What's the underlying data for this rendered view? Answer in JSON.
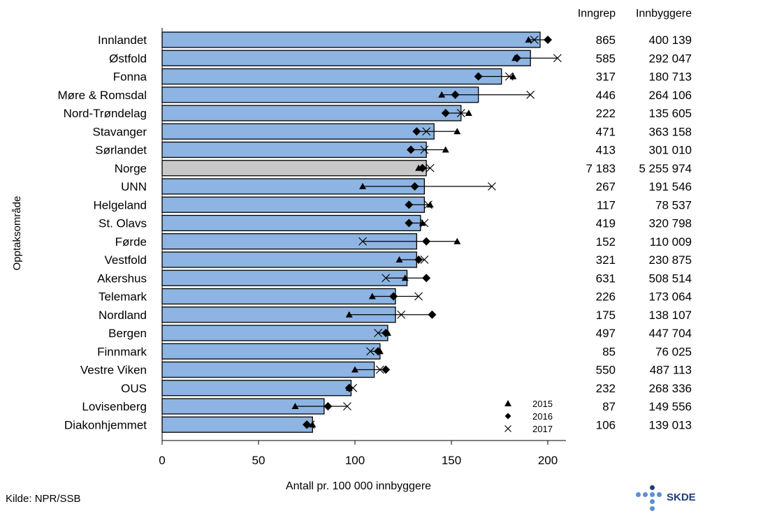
{
  "chart_data": {
    "type": "bar",
    "orientation": "horizontal",
    "xlabel": "Antall pr. 100 000 innbyggere",
    "ylabel": "Opptaksområde",
    "xlim": [
      0,
      210
    ],
    "xticks": [
      0,
      50,
      100,
      150,
      200
    ],
    "columns": [
      "Inngrep",
      "Innbyggere"
    ],
    "legend": [
      {
        "label": "2015",
        "marker": "triangle"
      },
      {
        "label": "2016",
        "marker": "diamond"
      },
      {
        "label": "2017",
        "marker": "x"
      }
    ],
    "bar_color": "#8db4e2",
    "highlight_color": "#c8c8c8",
    "rows": [
      {
        "name": "Innlandet",
        "value": 196,
        "y2015": 190,
        "y2016": 200,
        "y2017": 193,
        "inngrep": "865",
        "innbyggere": "400 139"
      },
      {
        "name": "Østfold",
        "value": 191,
        "y2015": 183,
        "y2016": 184,
        "y2017": 205,
        "inngrep": "585",
        "innbyggere": "292 047"
      },
      {
        "name": "Fonna",
        "value": 176,
        "y2015": 182,
        "y2016": 164,
        "y2017": 180,
        "inngrep": "317",
        "innbyggere": "180 713"
      },
      {
        "name": "Møre & Romsdal",
        "value": 164,
        "y2015": 145,
        "y2016": 152,
        "y2017": 191,
        "inngrep": "446",
        "innbyggere": "264 106"
      },
      {
        "name": "Nord-Trøndelag",
        "value": 155,
        "y2015": 159,
        "y2016": 147,
        "y2017": 155,
        "inngrep": "222",
        "innbyggere": "135 605"
      },
      {
        "name": "Stavanger",
        "value": 141,
        "y2015": 153,
        "y2016": 132,
        "y2017": 137,
        "inngrep": "471",
        "innbyggere": "363 158"
      },
      {
        "name": "Sørlandet",
        "value": 137,
        "y2015": 147,
        "y2016": 129,
        "y2017": 136,
        "inngrep": "413",
        "innbyggere": "301 010"
      },
      {
        "name": "Norge",
        "value": 137,
        "y2015": 133,
        "y2016": 135,
        "y2017": 139,
        "inngrep": "7 183",
        "innbyggere": "5 255 974",
        "highlight": true
      },
      {
        "name": "UNN",
        "value": 136,
        "y2015": 104,
        "y2016": 131,
        "y2017": 171,
        "inngrep": "267",
        "innbyggere": "191 546"
      },
      {
        "name": "Helgeland",
        "value": 136,
        "y2015": 139,
        "y2016": 128,
        "y2017": 138,
        "inngrep": "117",
        "innbyggere": "78 537"
      },
      {
        "name": "St. Olavs",
        "value": 134,
        "y2015": 135,
        "y2016": 128,
        "y2017": 136,
        "inngrep": "419",
        "innbyggere": "320 798"
      },
      {
        "name": "Førde",
        "value": 132,
        "y2015": 153,
        "y2016": 137,
        "y2017": 104,
        "inngrep": "152",
        "innbyggere": "110 009"
      },
      {
        "name": "Vestfold",
        "value": 132,
        "y2015": 123,
        "y2016": 133,
        "y2017": 136,
        "inngrep": "321",
        "innbyggere": "230 875"
      },
      {
        "name": "Akershus",
        "value": 127,
        "y2015": 126,
        "y2016": 137,
        "y2017": 116,
        "inngrep": "631",
        "innbyggere": "508 514"
      },
      {
        "name": "Telemark",
        "value": 121,
        "y2015": 109,
        "y2016": 120,
        "y2017": 133,
        "inngrep": "226",
        "innbyggere": "173 064"
      },
      {
        "name": "Nordland",
        "value": 121,
        "y2015": 97,
        "y2016": 140,
        "y2017": 124,
        "inngrep": "175",
        "innbyggere": "138 107"
      },
      {
        "name": "Bergen",
        "value": 117,
        "y2015": 117,
        "y2016": 116,
        "y2017": 112,
        "inngrep": "497",
        "innbyggere": "447 704"
      },
      {
        "name": "Finnmark",
        "value": 113,
        "y2015": 113,
        "y2016": 112,
        "y2017": 108,
        "inngrep": "85",
        "innbyggere": "76 025"
      },
      {
        "name": "Vestre Viken",
        "value": 110,
        "y2015": 100,
        "y2016": 116,
        "y2017": 113,
        "inngrep": "550",
        "innbyggere": "487 113"
      },
      {
        "name": "OUS",
        "value": 98,
        "y2015": 97,
        "y2016": 97,
        "y2017": 99,
        "inngrep": "232",
        "innbyggere": "268 336"
      },
      {
        "name": "Lovisenberg",
        "value": 84,
        "y2015": 69,
        "y2016": 86,
        "y2017": 96,
        "inngrep": "87",
        "innbyggere": "149 556"
      },
      {
        "name": "Diakonhjemmet",
        "value": 78,
        "y2015": 78,
        "y2016": 75,
        "y2017": 77,
        "inngrep": "106",
        "innbyggere": "139 013"
      }
    ]
  },
  "footer": {
    "source": "Kilde: NPR/SSB",
    "logo_text": "SKDE"
  }
}
